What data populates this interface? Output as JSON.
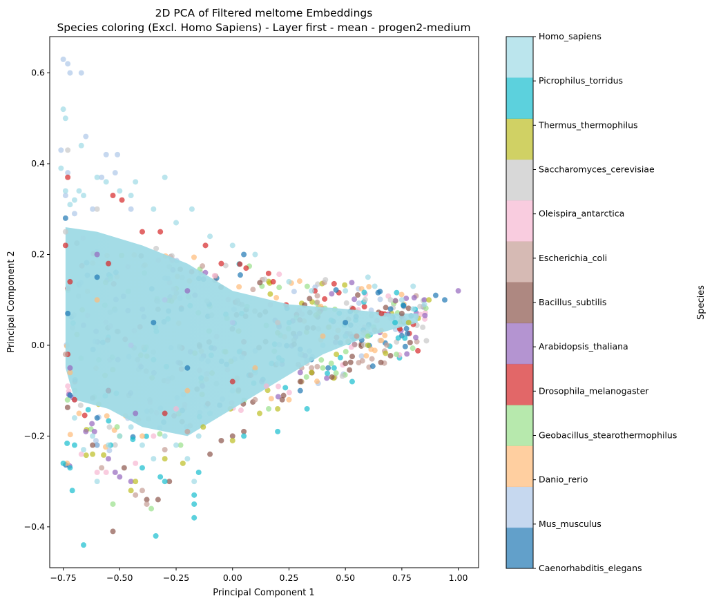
{
  "chart_data": {
    "type": "scatter",
    "title": "2D PCA of Filtered meltome Embeddings",
    "subtitle": "Species coloring (Excl. Homo Sapiens) - Layer first - mean - progen2-medium",
    "xlabel": "Principal Component 1",
    "ylabel": "Principal Component 2",
    "xlim": [
      -0.81,
      1.09
    ],
    "ylim": [
      -0.49,
      0.68
    ],
    "xticks": [
      -0.75,
      -0.5,
      -0.25,
      0.0,
      0.25,
      0.5,
      0.75,
      1.0
    ],
    "xtick_labels": [
      "−0.75",
      "−0.50",
      "−0.25",
      "0.00",
      "0.25",
      "0.50",
      "0.75",
      "1.00"
    ],
    "yticks": [
      -0.4,
      -0.2,
      0.0,
      0.2,
      0.4,
      0.6
    ],
    "ytick_labels": [
      "−0.4",
      "−0.2",
      "0.0",
      "0.2",
      "0.4",
      "0.6"
    ],
    "grid": false,
    "colorbar": {
      "label": "Species",
      "categories": [
        "Caenorhabditis_elegans",
        "Mus_musculus",
        "Danio_rerio",
        "Geobacillus_stearothermophilus",
        "Drosophila_melanogaster",
        "Arabidopsis_thaliana",
        "Bacillus_subtilis",
        "Escherichia_coli",
        "Oleispira_antarctica",
        "Saccharomyces_cerevisiae",
        "Thermus_thermophilus",
        "Picrophilus_torridus",
        "Homo_sapiens"
      ],
      "colors": [
        "#1f77b4",
        "#aec7e8",
        "#ffbb78",
        "#98df8a",
        "#d62728",
        "#9467bd",
        "#8c564b",
        "#c49c94",
        "#f7b6d2",
        "#c7c7c7",
        "#bcbd22",
        "#17becf",
        "#9edae5"
      ]
    },
    "point_alpha": 0.7,
    "series": [
      {
        "species": "Caenorhabditis_elegans",
        "points": [
          [
            -0.74,
            0.28
          ],
          [
            -0.73,
            0.07
          ],
          [
            -0.72,
            -0.11
          ],
          [
            -0.6,
            -0.16
          ],
          [
            -0.55,
            -0.1
          ],
          [
            0.05,
            0.2
          ],
          [
            0.9,
            0.11
          ],
          [
            0.94,
            0.1
          ],
          [
            -0.35,
            0.05
          ],
          [
            -0.2,
            -0.05
          ],
          [
            0.5,
            0.05
          ],
          [
            0.3,
            -0.1
          ],
          [
            -0.6,
            0.15
          ],
          [
            0.7,
            0.08
          ]
        ]
      },
      {
        "species": "Mus_musculus",
        "points": [
          [
            -0.75,
            0.63
          ],
          [
            -0.73,
            0.62
          ],
          [
            -0.72,
            0.6
          ],
          [
            -0.67,
            0.6
          ],
          [
            -0.56,
            0.42
          ],
          [
            -0.51,
            0.42
          ],
          [
            -0.65,
            0.46
          ],
          [
            -0.58,
            0.37
          ],
          [
            -0.52,
            0.38
          ],
          [
            -0.76,
            0.43
          ],
          [
            -0.73,
            0.38
          ],
          [
            -0.74,
            0.33
          ],
          [
            -0.7,
            0.29
          ],
          [
            -0.62,
            0.3
          ],
          [
            -0.45,
            0.3
          ],
          [
            -0.7,
            -0.12
          ],
          [
            -0.6,
            -0.22
          ],
          [
            -0.45,
            0.0
          ],
          [
            -0.3,
            0.1
          ],
          [
            0.0,
            0.05
          ]
        ]
      },
      {
        "species": "Danio_rerio",
        "points": [
          [
            -0.72,
            -0.06
          ],
          [
            -0.68,
            -0.15
          ],
          [
            -0.4,
            -0.2
          ],
          [
            -0.2,
            -0.1
          ],
          [
            0.1,
            -0.05
          ],
          [
            0.4,
            0.02
          ],
          [
            -0.6,
            0.1
          ],
          [
            0.25,
            -0.12
          ]
        ]
      },
      {
        "species": "Geobacillus_stearothermophilus",
        "points": [
          [
            -0.53,
            -0.35
          ],
          [
            -0.36,
            -0.36
          ],
          [
            -0.23,
            -0.22
          ],
          [
            0.16,
            -0.14
          ],
          [
            0.4,
            -0.05
          ],
          [
            -0.5,
            -0.2
          ],
          [
            0.6,
            0.02
          ]
        ]
      },
      {
        "species": "Drosophila_melanogaster",
        "points": [
          [
            -0.73,
            0.37
          ],
          [
            -0.53,
            0.33
          ],
          [
            -0.49,
            0.32
          ],
          [
            -0.32,
            0.25
          ],
          [
            -0.4,
            0.25
          ],
          [
            -0.12,
            0.22
          ],
          [
            -0.05,
            0.18
          ],
          [
            0.06,
            0.17
          ],
          [
            0.18,
            0.14
          ],
          [
            -0.74,
            0.22
          ],
          [
            -0.72,
            0.14
          ],
          [
            -0.73,
            -0.02
          ],
          [
            -0.7,
            -0.12
          ],
          [
            -0.55,
            0.18
          ],
          [
            0.66,
            0.07
          ],
          [
            -0.3,
            -0.15
          ],
          [
            0.0,
            -0.08
          ]
        ]
      },
      {
        "species": "Arabidopsis_thaliana",
        "points": [
          [
            1.0,
            0.12
          ],
          [
            -0.55,
            -0.25
          ],
          [
            -0.52,
            -0.28
          ],
          [
            -0.5,
            -0.29
          ],
          [
            -0.45,
            -0.3
          ],
          [
            -0.65,
            -0.19
          ],
          [
            -0.72,
            -0.05
          ],
          [
            -0.43,
            -0.15
          ],
          [
            0.85,
            0.1
          ],
          [
            -0.6,
            0.2
          ],
          [
            -0.2,
            0.12
          ],
          [
            0.3,
            -0.06
          ]
        ]
      },
      {
        "species": "Bacillus_subtilis",
        "points": [
          [
            -0.53,
            -0.41
          ],
          [
            -0.38,
            -0.34
          ],
          [
            -0.33,
            -0.34
          ],
          [
            -0.28,
            -0.3
          ],
          [
            -0.1,
            -0.24
          ],
          [
            -0.05,
            -0.21
          ],
          [
            0.0,
            -0.2
          ],
          [
            0.05,
            -0.19
          ],
          [
            0.22,
            -0.12
          ],
          [
            0.3,
            -0.08
          ],
          [
            0.44,
            -0.07
          ],
          [
            0.5,
            -0.04
          ],
          [
            -0.62,
            -0.22
          ],
          [
            -0.48,
            -0.27
          ],
          [
            0.75,
            0.07
          ]
        ]
      },
      {
        "species": "Escherichia_coli",
        "points": [
          [
            -0.43,
            -0.33
          ],
          [
            -0.4,
            -0.32
          ],
          [
            -0.38,
            -0.35
          ],
          [
            -0.58,
            -0.27
          ],
          [
            -0.2,
            -0.19
          ],
          [
            0.1,
            -0.12
          ],
          [
            0.35,
            -0.05
          ],
          [
            0.55,
            0.02
          ],
          [
            -0.74,
            -0.02
          ],
          [
            -0.3,
            -0.23
          ]
        ]
      },
      {
        "species": "Oleispira_antarctica",
        "points": [
          [
            -0.67,
            -0.24
          ],
          [
            -0.6,
            -0.28
          ],
          [
            -0.56,
            -0.28
          ],
          [
            -0.43,
            -0.26
          ],
          [
            -0.35,
            -0.2
          ],
          [
            -0.73,
            -0.09
          ],
          [
            -0.25,
            -0.14
          ],
          [
            0.15,
            -0.09
          ]
        ]
      },
      {
        "species": "Saccharomyces_cerevisiae",
        "points": [
          [
            -0.73,
            0.43
          ],
          [
            -0.74,
            0.25
          ],
          [
            -0.6,
            0.3
          ],
          [
            -0.55,
            -0.1
          ],
          [
            0.2,
            0.05
          ],
          [
            0.7,
            0.1
          ]
        ]
      },
      {
        "species": "Thermus_thermophilus",
        "points": [
          [
            -0.45,
            -0.32
          ],
          [
            -0.43,
            -0.3
          ],
          [
            -0.3,
            -0.25
          ],
          [
            -0.22,
            -0.26
          ],
          [
            -0.13,
            -0.18
          ],
          [
            0.0,
            -0.21
          ],
          [
            0.12,
            -0.15
          ],
          [
            0.2,
            -0.14
          ],
          [
            0.35,
            -0.06
          ],
          [
            0.6,
            0.0
          ],
          [
            0.78,
            0.05
          ],
          [
            0.87,
            0.1
          ],
          [
            -0.62,
            -0.24
          ],
          [
            0.46,
            -0.02
          ]
        ]
      },
      {
        "species": "Picrophilus_torridus",
        "points": [
          [
            -0.75,
            -0.26
          ],
          [
            -0.72,
            -0.27
          ],
          [
            -0.71,
            -0.32
          ],
          [
            -0.66,
            -0.44
          ],
          [
            -0.54,
            -0.22
          ],
          [
            -0.4,
            -0.27
          ],
          [
            -0.34,
            -0.42
          ],
          [
            -0.32,
            -0.29
          ],
          [
            -0.3,
            -0.3
          ],
          [
            -0.17,
            -0.33
          ],
          [
            -0.17,
            -0.35
          ],
          [
            -0.17,
            -0.38
          ],
          [
            -0.15,
            -0.28
          ],
          [
            0.05,
            -0.2
          ],
          [
            0.2,
            -0.19
          ],
          [
            0.33,
            -0.14
          ],
          [
            0.53,
            -0.08
          ],
          [
            0.72,
            0.05
          ],
          [
            -0.7,
            -0.22
          ],
          [
            0.45,
            -0.05
          ]
        ]
      },
      {
        "species": "Homo_sapiens",
        "points": [
          [
            -0.75,
            0.52
          ],
          [
            -0.74,
            0.5
          ],
          [
            -0.67,
            0.44
          ],
          [
            -0.74,
            0.34
          ],
          [
            -0.72,
            0.31
          ],
          [
            -0.7,
            0.32
          ],
          [
            -0.68,
            0.34
          ],
          [
            -0.66,
            0.33
          ],
          [
            -0.6,
            0.37
          ],
          [
            -0.56,
            0.36
          ],
          [
            -0.5,
            0.34
          ],
          [
            -0.45,
            0.33
          ],
          [
            -0.43,
            0.36
          ],
          [
            -0.3,
            0.37
          ],
          [
            -0.35,
            0.3
          ],
          [
            -0.25,
            0.27
          ],
          [
            -0.18,
            0.3
          ],
          [
            -0.1,
            0.24
          ],
          [
            0.0,
            0.22
          ],
          [
            0.1,
            0.2
          ],
          [
            0.25,
            0.14
          ],
          [
            0.35,
            0.12
          ],
          [
            0.5,
            0.12
          ],
          [
            0.6,
            0.15
          ],
          [
            0.63,
            0.13
          ],
          [
            0.75,
            0.1
          ],
          [
            0.8,
            0.13
          ],
          [
            0.85,
            0.09
          ],
          [
            -0.76,
            0.39
          ],
          [
            -0.7,
            -0.16
          ],
          [
            -0.66,
            -0.23
          ],
          [
            -0.62,
            -0.2
          ],
          [
            -0.6,
            -0.3
          ],
          [
            -0.55,
            -0.22
          ],
          [
            -0.5,
            -0.2
          ],
          [
            -0.45,
            -0.18
          ],
          [
            -0.4,
            -0.22
          ],
          [
            -0.35,
            -0.25
          ],
          [
            -0.3,
            -0.2
          ],
          [
            -0.25,
            -0.22
          ],
          [
            -0.2,
            -0.25
          ],
          [
            -0.15,
            -0.2
          ],
          [
            -0.1,
            -0.15
          ],
          [
            0.0,
            -0.1
          ],
          [
            0.1,
            -0.06
          ],
          [
            0.2,
            -0.04
          ],
          [
            0.3,
            -0.02
          ],
          [
            0.4,
            0.0
          ],
          [
            0.5,
            0.02
          ],
          [
            0.6,
            0.04
          ],
          [
            0.7,
            0.06
          ],
          [
            0.8,
            0.08
          ],
          [
            -0.17,
            -0.3
          ]
        ]
      }
    ]
  }
}
